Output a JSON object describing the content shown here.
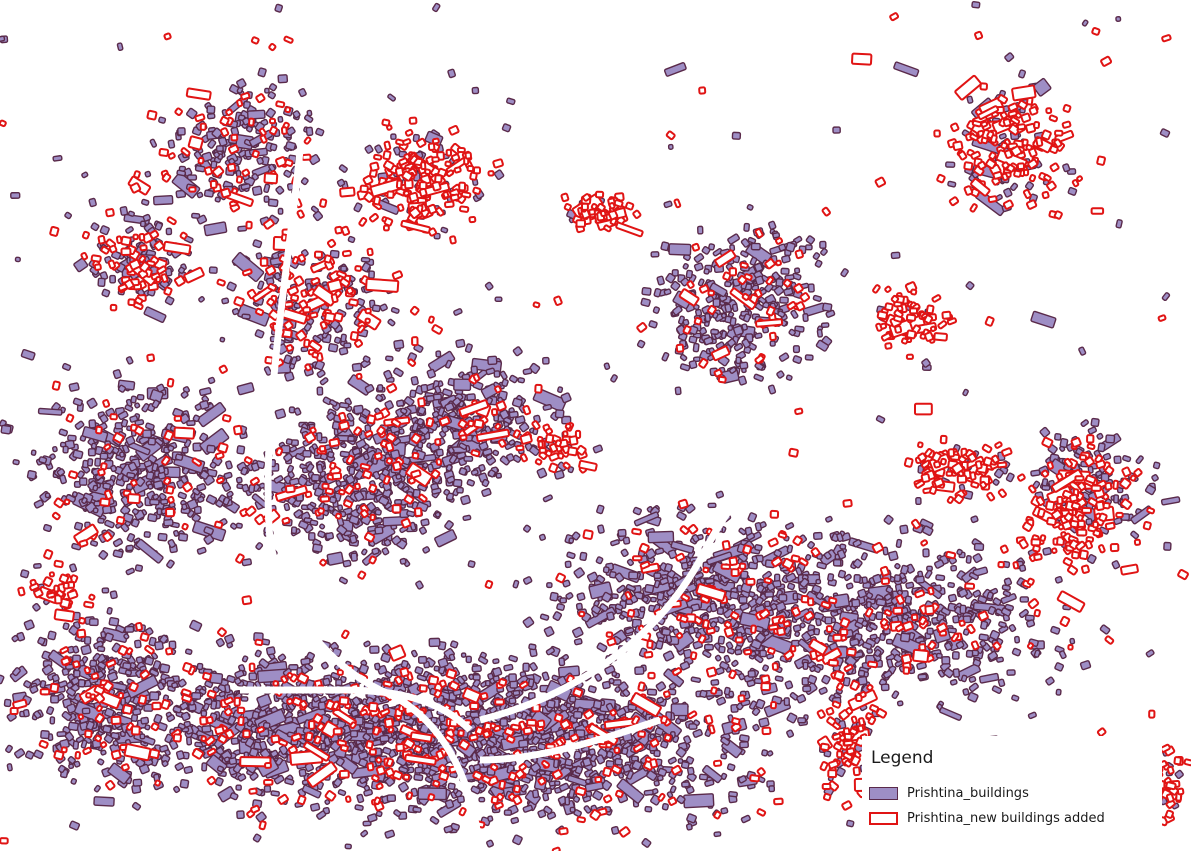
{
  "legend": {
    "title": "Legend",
    "items": [
      {
        "label": "Prishtina_buildings",
        "fill": "#9e8ec5",
        "stroke": "#5a2a4a"
      },
      {
        "label": "Prishtina_new buildings added",
        "fill": "#ffffff",
        "stroke": "#e01414"
      }
    ]
  },
  "colors": {
    "background": "#ffffff",
    "existing_fill": "#9e8ec5",
    "existing_stroke": "#5a2a4a",
    "added_stroke": "#e01414"
  }
}
